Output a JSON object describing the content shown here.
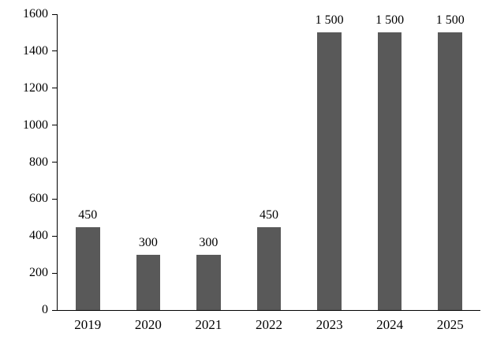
{
  "chart_data": {
    "type": "bar",
    "title": "",
    "xlabel": "",
    "ylabel": "",
    "categories": [
      "2019",
      "2020",
      "2021",
      "2022",
      "2023",
      "2024",
      "2025"
    ],
    "values": [
      450,
      300,
      300,
      450,
      1500,
      1500,
      1500
    ],
    "data_labels": [
      "450",
      "300",
      "300",
      "450",
      "1 500",
      "1 500",
      "1 500"
    ],
    "y_ticks": [
      0,
      200,
      400,
      600,
      800,
      1000,
      1200,
      1400,
      1600
    ],
    "y_tick_labels": [
      "0",
      "200",
      "400",
      "600",
      "800",
      "1000",
      "1200",
      "1400",
      "1600"
    ],
    "ylim": [
      0,
      1600
    ],
    "grid": false,
    "legend_position": "none",
    "bar_color": "#595959",
    "axis_color": "#000000",
    "text_color": "#000000",
    "background_color": "#ffffff"
  }
}
